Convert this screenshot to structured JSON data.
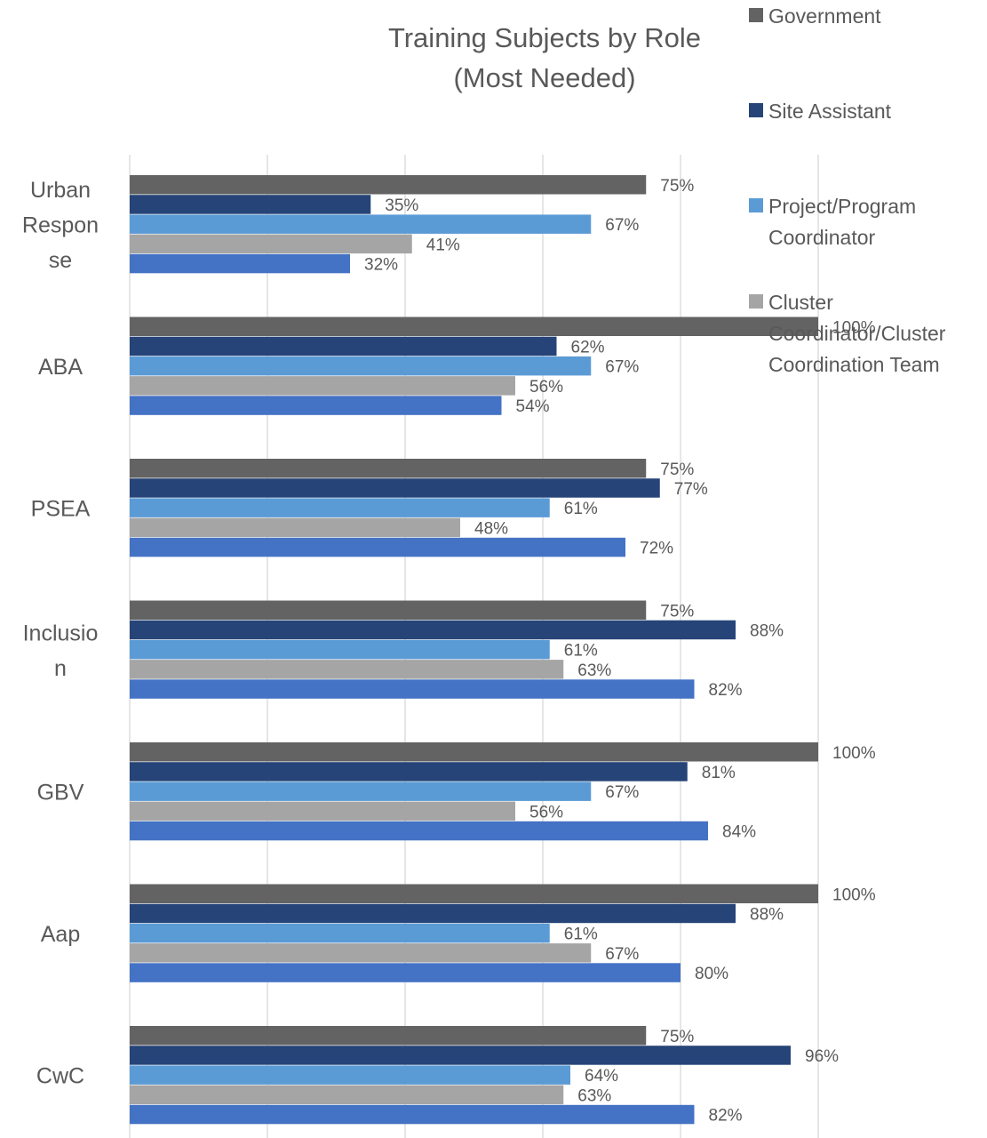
{
  "chart_data": {
    "type": "bar",
    "orientation": "horizontal",
    "title": "Training Subjects by Role (Most Needed)",
    "title_lines": [
      "Training Subjects by Role",
      "(Most Needed)"
    ],
    "categories": [
      "Urban Response",
      "ABA",
      "PSEA",
      "Inclusion",
      "GBV",
      "Aap",
      "CwC"
    ],
    "category_label_lines": [
      [
        "Urban",
        "Respon",
        "se"
      ],
      [
        "ABA"
      ],
      [
        "PSEA"
      ],
      [
        "Inclusio",
        "n"
      ],
      [
        "GBV"
      ],
      [
        "Aap"
      ],
      [
        "CwC"
      ]
    ],
    "series": [
      {
        "name": "Government",
        "color": "#636363",
        "values": [
          75,
          100,
          75,
          75,
          100,
          100,
          75
        ]
      },
      {
        "name": "Site Assistant",
        "color": "#264478",
        "values": [
          35,
          62,
          77,
          88,
          81,
          88,
          96
        ]
      },
      {
        "name": "Project/Program Coordinator",
        "color": "#5b9bd5",
        "values": [
          67,
          67,
          61,
          61,
          67,
          61,
          64
        ]
      },
      {
        "name": "Cluster Coordinator/Cluster Coordination Team",
        "color": "#a5a5a5",
        "values": [
          41,
          56,
          48,
          63,
          56,
          67,
          63
        ]
      },
      {
        "name": "",
        "color": "#4472c4",
        "values": [
          32,
          54,
          72,
          82,
          84,
          80,
          82
        ]
      }
    ],
    "legend": {
      "placement": "right",
      "entries": [
        {
          "name_lines": [
            "Government"
          ],
          "color": "#636363"
        },
        {
          "name_lines": [
            "Site Assistant"
          ],
          "color": "#264478"
        },
        {
          "name_lines": [
            "Project/Program",
            "Coordinator"
          ],
          "color": "#5b9bd5"
        },
        {
          "name_lines": [
            "Cluster",
            "Coordinator/Cluster",
            "Coordination Team"
          ],
          "color": "#a5a5a5"
        }
      ]
    },
    "value_suffix": "%",
    "xlim": [
      0,
      100
    ],
    "grid": true,
    "grid_color": "#d9d9d9",
    "text_color": "#595959"
  }
}
